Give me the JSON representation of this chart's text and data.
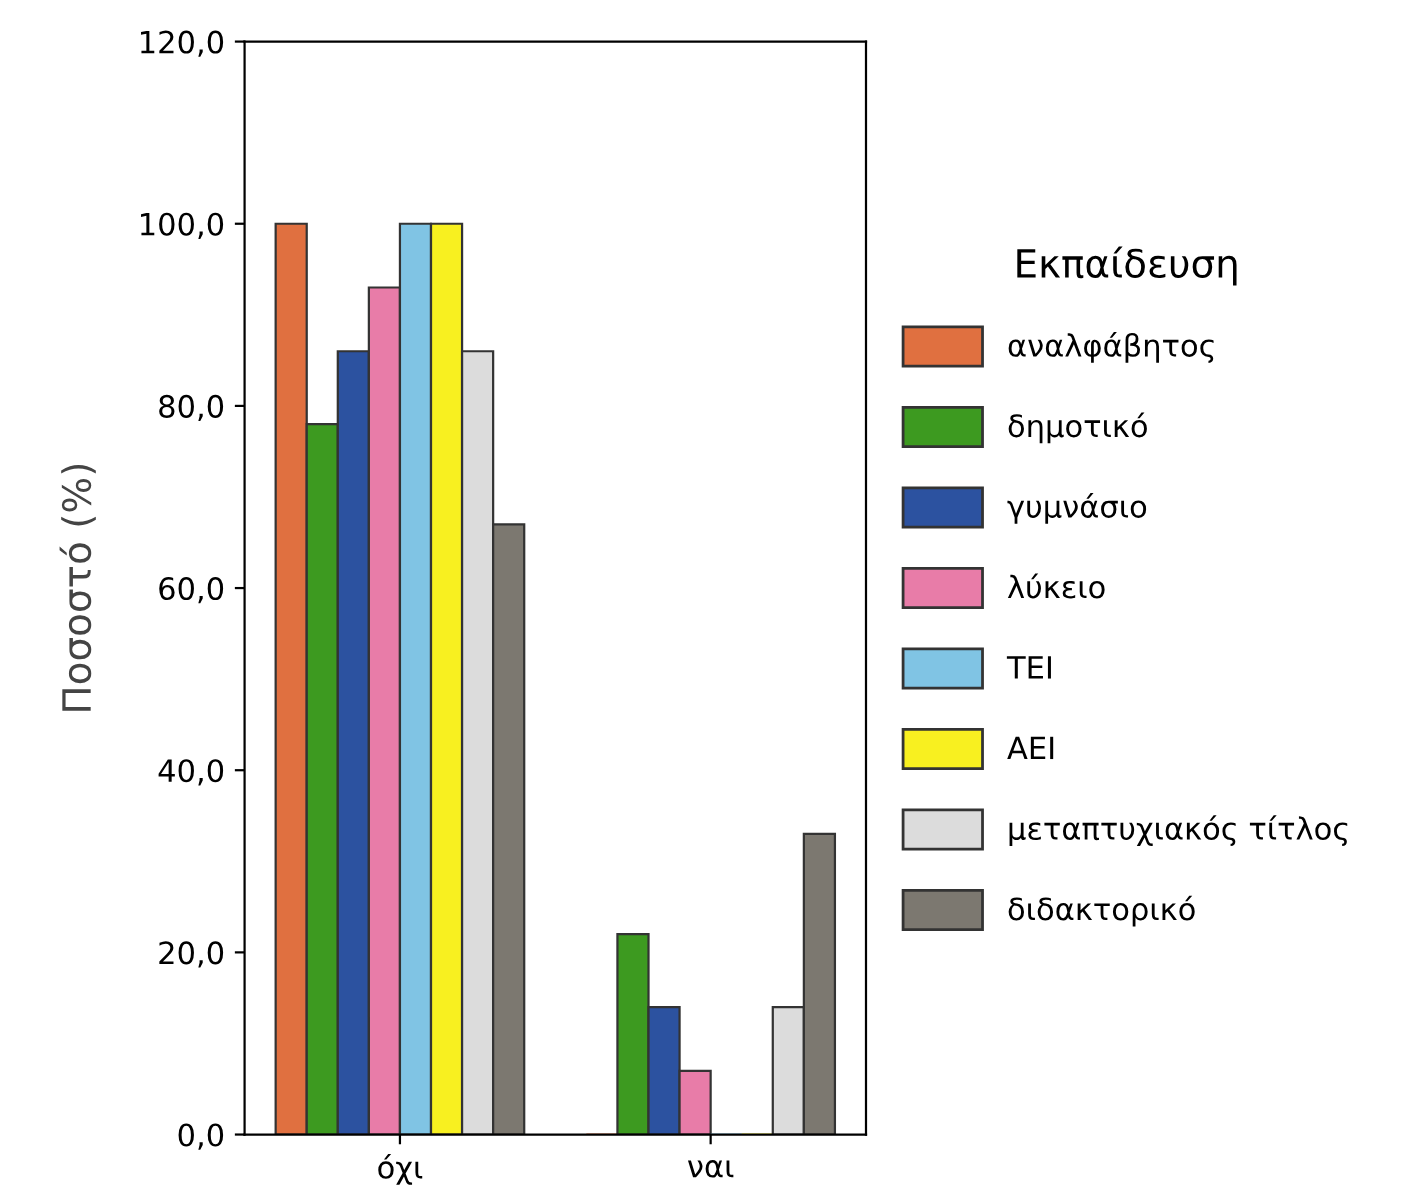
{
  "chart_data": {
    "type": "bar",
    "ylabel": "Ποσοστό (%)",
    "legend_title": "Εκπαίδευση",
    "legend": "right",
    "grid": false,
    "categories": [
      "όχι",
      "ναι"
    ],
    "ylim": [
      0,
      120
    ],
    "yticks": [
      {
        "value": 0,
        "label": "0,0"
      },
      {
        "value": 20,
        "label": "20,0"
      },
      {
        "value": 40,
        "label": "40,0"
      },
      {
        "value": 60,
        "label": "60,0"
      },
      {
        "value": 80,
        "label": "80,0"
      },
      {
        "value": 100,
        "label": "100,0"
      },
      {
        "value": 120,
        "label": "120,0"
      }
    ],
    "series": [
      {
        "name": "αναλφάβητος",
        "color": "#e07040",
        "values": [
          100,
          0
        ]
      },
      {
        "name": "δημοτικό",
        "color": "#3d9a20",
        "values": [
          78,
          22
        ]
      },
      {
        "name": "γυμνάσιο",
        "color": "#2c52a0",
        "values": [
          86,
          14
        ]
      },
      {
        "name": "λύκειο",
        "color": "#e87ca8",
        "values": [
          93,
          7
        ]
      },
      {
        "name": "ΤΕΙ",
        "color": "#80c4e4",
        "values": [
          100,
          0
        ]
      },
      {
        "name": "ΑΕΙ",
        "color": "#f8f020",
        "values": [
          100,
          0
        ]
      },
      {
        "name": "μεταπτυχιακός τίτλος",
        "color": "#dcdcdc",
        "values": [
          86,
          14
        ]
      },
      {
        "name": "διδακτορικό",
        "color": "#7c7870",
        "values": [
          67,
          33
        ]
      }
    ]
  }
}
